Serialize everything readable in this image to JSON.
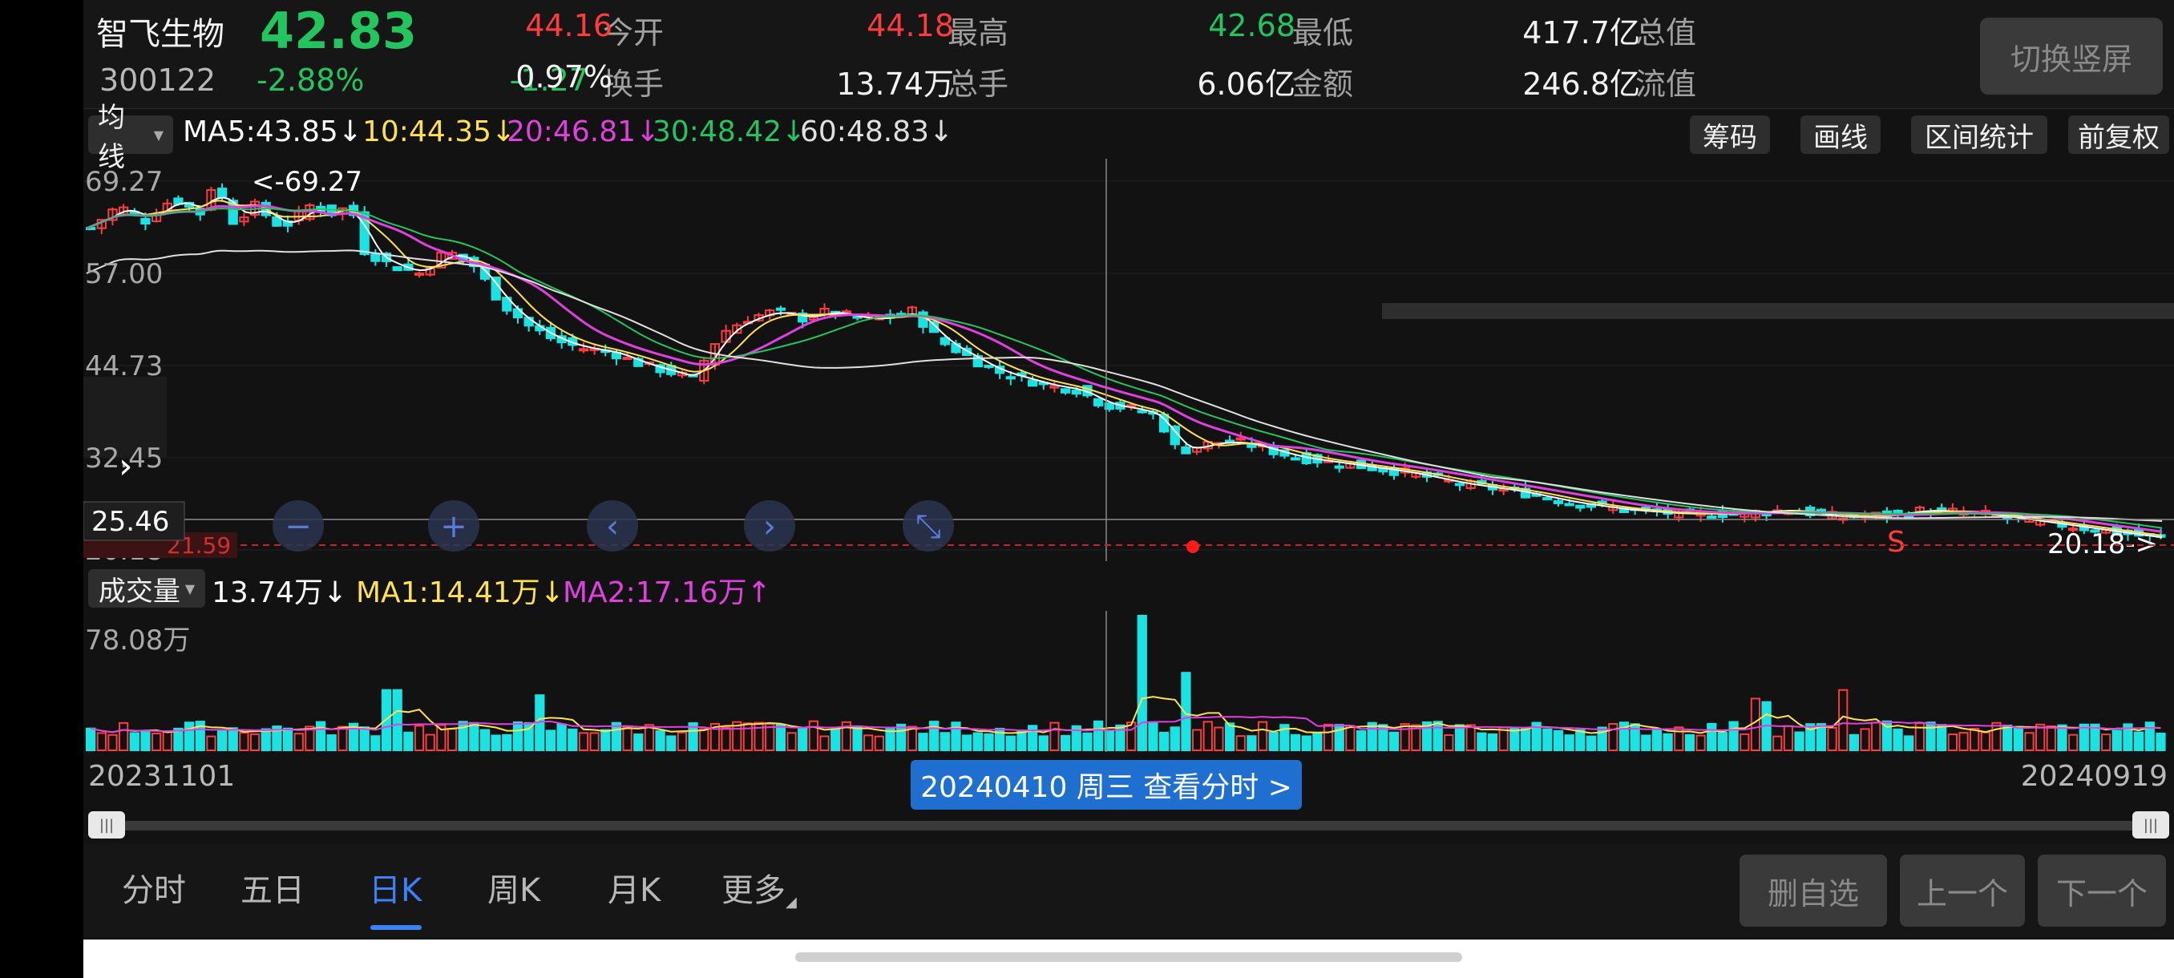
{
  "stock": {
    "name": "智飞生物",
    "price": "42.83",
    "code": "300122",
    "change_pct": "-2.88%",
    "change": "-1.27"
  },
  "stats": [
    {
      "label": "今开",
      "value": "44.16",
      "color": "red"
    },
    {
      "label": "最高",
      "value": "44.18",
      "color": "red"
    },
    {
      "label": "最低",
      "value": "42.68",
      "color": "green"
    },
    {
      "label": "总值",
      "value": "417.7亿",
      "color": "white"
    },
    {
      "label": "换手",
      "value": "0.97%",
      "color": "white"
    },
    {
      "label": "总手",
      "value": "13.74万",
      "color": "white"
    },
    {
      "label": "金额",
      "value": "6.06亿",
      "color": "white"
    },
    {
      "label": "流值",
      "value": "246.8亿",
      "color": "white"
    }
  ],
  "header_button": "切换竖屏",
  "ma_row": {
    "selector": "均线",
    "ma5": "MA5:43.85↓",
    "ma10": "10:44.35↓",
    "ma20": "20:46.81↓",
    "ma30": "30:48.42↓",
    "ma60": "60:48.83↓",
    "buttons": [
      "筹码",
      "画线",
      "区间统计",
      "前复权"
    ]
  },
  "price_axis": [
    "69.27",
    "57.00",
    "44.73",
    "32.45",
    "25.46",
    "20.18"
  ],
  "annotations": {
    "high_mark": "<-69.27",
    "low_mark": "20.18->",
    "dash_line_value": "21.59",
    "crosshair_price": "25.46",
    "signal": "S"
  },
  "chart_controls": [
    "zoom-out",
    "zoom-in",
    "pan-left",
    "pan-right",
    "reset"
  ],
  "volume_row": {
    "selector": "成交量",
    "vol": "13.74万↓",
    "ma1": "MA1:14.41万↓",
    "ma2": "MA2:17.16万↑",
    "axis_max": "78.08万"
  },
  "dates": {
    "start": "20231101",
    "end": "20240919",
    "tip": "20240410 周三 查看分时 >"
  },
  "tabs": [
    "分时",
    "五日",
    "日K",
    "周K",
    "月K",
    "更多"
  ],
  "active_tab": 2,
  "actions": [
    "删自选",
    "上一个",
    "下一个"
  ],
  "colors": {
    "up": "#ff3b3b",
    "down": "#19e3e3",
    "ma5": "#ffffff",
    "ma10": "#ffe14d",
    "ma20": "#e040e0",
    "ma30": "#22c55e",
    "ma60": "#e0e0e0"
  },
  "chart_data": {
    "type": "candlestick",
    "x_range": [
      "20231101",
      "20240919"
    ],
    "ylim": [
      20.18,
      69.27
    ],
    "price_path": [
      [
        0,
        63
      ],
      [
        10,
        66
      ],
      [
        20,
        64
      ],
      [
        30,
        67
      ],
      [
        40,
        65
      ],
      [
        45,
        69.27
      ],
      [
        52,
        64
      ],
      [
        60,
        66
      ],
      [
        70,
        63
      ],
      [
        80,
        66
      ],
      [
        88,
        65
      ],
      [
        95,
        66
      ],
      [
        100,
        60
      ],
      [
        110,
        58
      ],
      [
        120,
        57
      ],
      [
        130,
        60
      ],
      [
        140,
        58
      ],
      [
        150,
        53
      ],
      [
        160,
        50
      ],
      [
        170,
        48
      ],
      [
        180,
        47
      ],
      [
        190,
        46.5
      ],
      [
        200,
        45
      ],
      [
        210,
        44
      ],
      [
        220,
        43
      ],
      [
        225,
        46
      ],
      [
        230,
        49
      ],
      [
        240,
        51
      ],
      [
        250,
        52
      ],
      [
        260,
        51
      ],
      [
        270,
        52
      ],
      [
        280,
        51
      ],
      [
        290,
        51
      ],
      [
        300,
        52
      ],
      [
        305,
        50
      ],
      [
        310,
        48
      ],
      [
        320,
        46
      ],
      [
        330,
        44
      ],
      [
        340,
        43
      ],
      [
        350,
        42
      ],
      [
        360,
        41.5
      ],
      [
        370,
        39.5
      ],
      [
        380,
        39
      ],
      [
        390,
        38
      ],
      [
        395,
        34
      ],
      [
        400,
        33.5
      ],
      [
        410,
        34.5
      ],
      [
        420,
        34.5
      ],
      [
        430,
        33.5
      ],
      [
        440,
        32.5
      ],
      [
        460,
        31.5
      ],
      [
        480,
        30.5
      ],
      [
        500,
        29
      ],
      [
        520,
        28
      ],
      [
        540,
        26.5
      ],
      [
        560,
        25.5
      ],
      [
        580,
        25
      ],
      [
        600,
        25
      ],
      [
        620,
        25.5
      ],
      [
        640,
        24.5
      ],
      [
        660,
        25
      ],
      [
        670,
        25.5
      ],
      [
        690,
        25
      ],
      [
        710,
        24
      ],
      [
        730,
        23
      ],
      [
        750,
        22
      ],
      [
        760,
        21.5
      ]
    ],
    "crosshair_index": 355,
    "volume_max": 78.08,
    "volume_unit": "万",
    "volume_peak_index": 385,
    "volume_spikes": [
      [
        110,
        35
      ],
      [
        165,
        32
      ],
      [
        385,
        78.08
      ],
      [
        400,
        45
      ],
      [
        610,
        30
      ],
      [
        612,
        28
      ],
      [
        640,
        35
      ]
    ]
  }
}
